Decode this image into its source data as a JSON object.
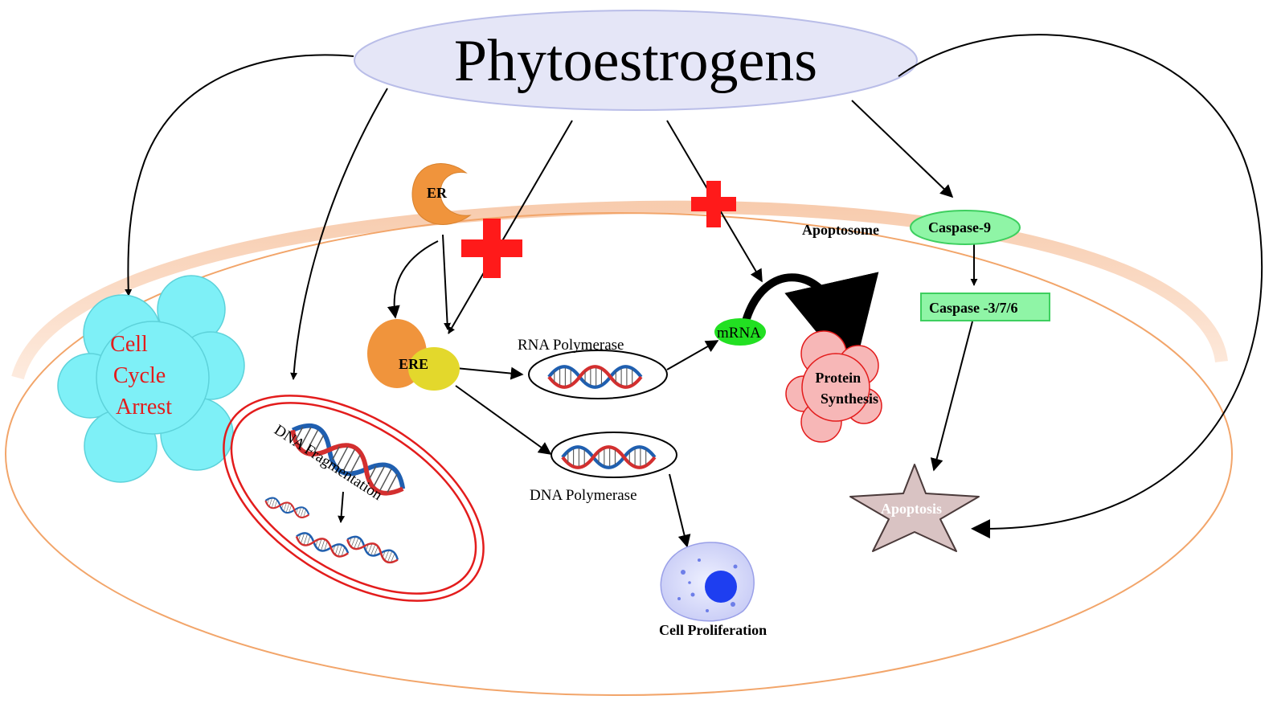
{
  "title": "Phytoestrogens",
  "nodes": {
    "er": "ER",
    "ere": "ERE",
    "cell_cycle_arrest": [
      "Cell",
      "Cycle",
      "Arrest"
    ],
    "dna_fragmentation": "DNA Fragmentation",
    "rna_polymerase": "RNA Polymerase",
    "dna_polymerase": "DNA Polymerase",
    "mrna": "mRNA",
    "protein_synthesis": [
      "Protein",
      "Synthesis"
    ],
    "cell_proliferation": "Cell Proliferation",
    "apoptosome": "Apoptosome",
    "caspase9": "Caspase-9",
    "caspase_376": "Caspase -3/7/6",
    "apoptosis": "Apoptosis"
  },
  "colors": {
    "title_ellipse_fill": "#e5e6f7",
    "cell_membrane": "#f2a56a",
    "receptor_orange": "#f0943c",
    "ere_yellow": "#e3d82c",
    "inhibit_cross": "#ff1a1a",
    "cloud_cyan": "#7ef0f7",
    "protein_pink": "#f7b7b7",
    "caspase_green": "#8ff5a6",
    "mrna_green": "#22e022",
    "apoptosis_star": "#d9c3c3",
    "nucleus_blue": "#1e3ef0",
    "dna_fragment_border": "#e31c1c"
  },
  "icons": [
    "inhibition-cross-icon",
    "dna-helix-icon",
    "cell-icon",
    "star-icon",
    "cloud-icon"
  ]
}
